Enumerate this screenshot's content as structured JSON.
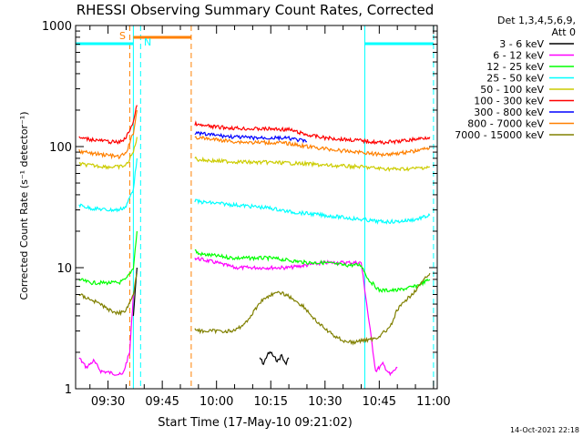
{
  "chart_data": {
    "type": "line",
    "title": "RHESSI Observing Summary Count Rates, Corrected",
    "xlabel": "Start Time (17-May-10 09:21:02)",
    "ylabel": "Corrected Count Rate (s⁻¹ detector⁻¹)",
    "y_scale": "log",
    "ylim": [
      1,
      1000
    ],
    "y_ticks": [
      {
        "value": 1,
        "label": "1"
      },
      {
        "value": 10,
        "label": "10"
      },
      {
        "value": 100,
        "label": "100"
      },
      {
        "value": 1000,
        "label": "1000"
      }
    ],
    "xlim": [
      "09:21:02",
      "11:01:02"
    ],
    "x_ticks": [
      {
        "time": "09:30",
        "label": "09:30"
      },
      {
        "time": "09:45",
        "label": "09:45"
      },
      {
        "time": "10:00",
        "label": "10:00"
      },
      {
        "time": "10:15",
        "label": "10:15"
      },
      {
        "time": "10:30",
        "label": "10:30"
      },
      {
        "time": "10:45",
        "label": "10:45"
      },
      {
        "time": "11:00",
        "label": "11:00"
      }
    ],
    "legend_header": [
      "Det 1,3,4,5,6,9,",
      "Att 0"
    ],
    "legend_position": "right",
    "annotations": {
      "saa_label": "S",
      "night_label": "N"
    },
    "footer_date": "14-Oct-2021 22:18",
    "data_gap": [
      "09:38",
      "09:53"
    ],
    "saa_bar": [
      "09:37",
      "09:53"
    ],
    "night_bars": [
      [
        "09:21",
        "09:37"
      ],
      [
        "10:41",
        "11:00"
      ]
    ],
    "night_markers": [
      {
        "time": "09:37",
        "style": "solid",
        "color": "#00ffff"
      },
      {
        "time": "09:39",
        "style": "dashed",
        "color": "#00ffff"
      },
      {
        "time": "10:41",
        "style": "solid",
        "color": "#00ffff"
      },
      {
        "time": "11:00",
        "style": "dashed",
        "color": "#00ffff"
      }
    ],
    "saa_markers": [
      {
        "time": "09:36",
        "style": "dashed",
        "color": "#ff8000"
      },
      {
        "time": "09:53",
        "style": "dashed",
        "color": "#ff8000"
      }
    ],
    "series": [
      {
        "name": "3 - 6 keV",
        "color": "#000000",
        "x": [
          "09:37",
          "09:38",
          "10:12",
          "10:13",
          "10:14",
          "10:15",
          "10:16",
          "10:17",
          "10:18",
          "10:19",
          "10:20"
        ],
        "y": [
          4,
          10,
          1.8,
          1.6,
          1.9,
          2.0,
          1.8,
          1.7,
          1.9,
          1.6,
          1.8
        ]
      },
      {
        "name": "6 - 12 keV",
        "color": "#ff00ff",
        "x": [
          "09:22",
          "09:24",
          "09:26",
          "09:28",
          "09:34",
          "09:36",
          "09:37",
          "09:54",
          "10:00",
          "10:05",
          "10:10",
          "10:15",
          "10:20",
          "10:25",
          "10:30",
          "10:35",
          "10:40",
          "10:44",
          "10:46",
          "10:48",
          "10:50"
        ],
        "y": [
          1.8,
          1.5,
          1.7,
          1.4,
          1.3,
          2,
          6,
          12,
          11,
          10,
          10,
          10,
          10,
          10.5,
          11,
          11,
          11,
          1.4,
          1.6,
          1.3,
          1.5
        ]
      },
      {
        "name": "12 - 25 keV",
        "color": "#00ff00",
        "x": [
          "09:22",
          "09:25",
          "09:30",
          "09:33",
          "09:35",
          "09:37",
          "09:38",
          "09:54",
          "09:55",
          "10:00",
          "10:05",
          "10:10",
          "10:15",
          "10:20",
          "10:25",
          "10:30",
          "10:35",
          "10:40",
          "10:42",
          "10:45",
          "10:50",
          "10:55",
          "10:59"
        ],
        "y": [
          8,
          7.5,
          7.5,
          7.5,
          8,
          10,
          20,
          14,
          13,
          12.5,
          12,
          12,
          12,
          11.5,
          11,
          11,
          10.5,
          10.5,
          8,
          6.5,
          6.5,
          7,
          8
        ]
      },
      {
        "name": "25 - 50 keV",
        "color": "#00ffff",
        "x": [
          "09:22",
          "09:25",
          "09:30",
          "09:33",
          "09:35",
          "09:37",
          "09:38",
          "09:54",
          "09:55",
          "10:00",
          "10:05",
          "10:10",
          "10:15",
          "10:20",
          "10:25",
          "10:30",
          "10:35",
          "10:40",
          "10:45",
          "10:50",
          "10:55",
          "10:59"
        ],
        "y": [
          33,
          31,
          30,
          30,
          32,
          45,
          80,
          36,
          35,
          34,
          33,
          32,
          31,
          29,
          28,
          27,
          26,
          25,
          24,
          24,
          25,
          27
        ]
      },
      {
        "name": "50 - 100 keV",
        "color": "#cccc00",
        "x": [
          "09:22",
          "09:25",
          "09:30",
          "09:33",
          "09:35",
          "09:37",
          "09:38",
          "09:54",
          "09:55",
          "10:00",
          "10:05",
          "10:10",
          "10:15",
          "10:20",
          "10:25",
          "10:30",
          "10:35",
          "10:40",
          "10:45",
          "10:50",
          "10:55",
          "10:59"
        ],
        "y": [
          72,
          70,
          68,
          68,
          70,
          90,
          120,
          80,
          78,
          76,
          75,
          74,
          74,
          73,
          72,
          70,
          69,
          68,
          66,
          65,
          66,
          68
        ]
      },
      {
        "name": "100 - 300 keV",
        "color": "#ff0000",
        "x": [
          "09:22",
          "09:25",
          "09:30",
          "09:33",
          "09:35",
          "09:37",
          "09:38",
          "09:54",
          "09:55",
          "10:00",
          "10:05",
          "10:10",
          "10:15",
          "10:20",
          "10:25",
          "10:30",
          "10:35",
          "10:40",
          "10:45",
          "10:50",
          "10:55",
          "10:59"
        ],
        "y": [
          118,
          115,
          110,
          108,
          118,
          160,
          220,
          155,
          150,
          145,
          142,
          140,
          140,
          138,
          125,
          118,
          115,
          112,
          108,
          110,
          115,
          120
        ]
      },
      {
        "name": "300 - 800 keV",
        "color": "#0000ff",
        "x": [
          "09:54",
          "09:55",
          "10:00",
          "10:05",
          "10:10",
          "10:15",
          "10:20",
          "10:25"
        ],
        "y": [
          130,
          128,
          124,
          120,
          118,
          118,
          117,
          110
        ]
      },
      {
        "name": "800 - 7000 keV",
        "color": "#ff8000",
        "x": [
          "09:22",
          "09:25",
          "09:30",
          "09:33",
          "09:35",
          "09:37",
          "09:38",
          "09:54",
          "09:55",
          "10:00",
          "10:05",
          "10:10",
          "10:15",
          "10:20",
          "10:25",
          "10:30",
          "10:35",
          "10:40",
          "10:45",
          "10:50",
          "10:55",
          "10:59"
        ],
        "y": [
          92,
          88,
          85,
          82,
          88,
          130,
          200,
          120,
          118,
          114,
          110,
          108,
          108,
          106,
          100,
          96,
          92,
          90,
          86,
          88,
          92,
          98
        ]
      },
      {
        "name": "7000 - 15000 keV",
        "color": "#808000",
        "x": [
          "09:22",
          "09:25",
          "09:28",
          "09:30",
          "09:33",
          "09:35",
          "09:37",
          "09:38",
          "09:54",
          "09:55",
          "10:00",
          "10:05",
          "10:08",
          "10:10",
          "10:12",
          "10:15",
          "10:18",
          "10:20",
          "10:24",
          "10:28",
          "10:32",
          "10:35",
          "10:38",
          "10:40",
          "10:44",
          "10:48",
          "10:50",
          "10:55",
          "10:59"
        ],
        "y": [
          6,
          5.5,
          5,
          4.5,
          4.2,
          4.5,
          6,
          9,
          3.2,
          3.0,
          3.0,
          3.0,
          3.5,
          4.2,
          5.2,
          6.0,
          6.2,
          5.8,
          4.8,
          3.5,
          2.8,
          2.5,
          2.4,
          2.5,
          2.6,
          3.2,
          4.5,
          6.5,
          9
        ]
      }
    ]
  }
}
